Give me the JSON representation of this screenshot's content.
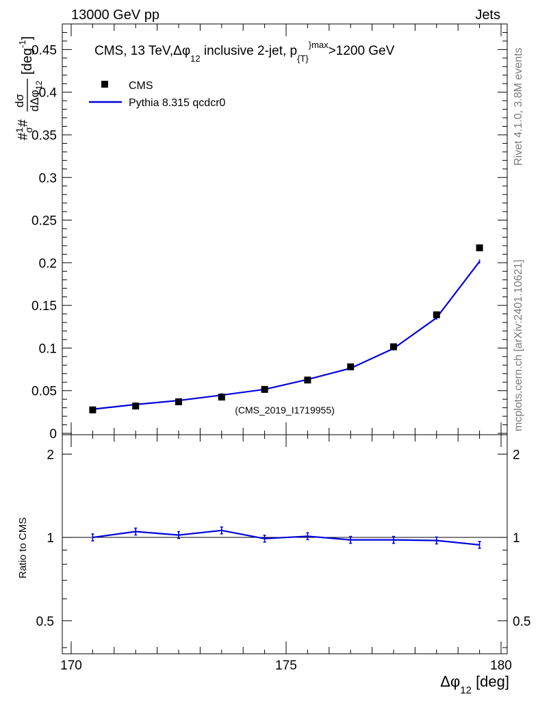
{
  "header": {
    "left": "13000 GeV pp",
    "right": "Jets"
  },
  "side_labels": {
    "rivet": "Rivet 4.1.0,  3.8M events",
    "mcplots": "mcplots.cern.ch [arXiv:2401.10621]"
  },
  "analysis_tag": "(CMS_2019_I1719955)",
  "colors": {
    "data": "#000000",
    "mc": "#0000dd",
    "side_text": "#7a7a7a"
  },
  "chart_data": [
    {
      "type": "scatter",
      "panel": "main",
      "title_parts": {
        "a": "CMS, 13 TeV,",
        "dphi": "Δφ",
        "sub12": "12",
        "b": " inclusive 2-jet,  p",
        "subT": "{T}",
        "supmax": "}max",
        "c": ">1200 GeV"
      },
      "ylabel_parts": {
        "hash1": "#",
        "one": "1",
        "sigma": "σ",
        "hash2": "#",
        "num": "dσ",
        "den": "dΔφ",
        "sub": "12",
        "unit": "[deg",
        "unit_sup": "-1",
        "unit_close": "]"
      },
      "xlim": [
        170,
        180
      ],
      "ylim": [
        0,
        0.48
      ],
      "yticks": [
        0,
        0.05,
        0.1,
        0.15,
        0.2,
        0.25,
        0.3,
        0.35,
        0.4,
        0.45
      ],
      "ytick_labels": [
        "0",
        "0.05",
        "0.1",
        "0.15",
        "0.2",
        "0.25",
        "0.3",
        "0.35",
        "0.4",
        "0.45"
      ],
      "legend": [
        {
          "label": "CMS",
          "kind": "marker"
        },
        {
          "label": "Pythia 8.315 qcdcr0",
          "kind": "line"
        }
      ],
      "series": [
        {
          "name": "CMS",
          "x": [
            170.5,
            171.5,
            172.5,
            173.5,
            174.5,
            175.5,
            176.5,
            177.5,
            178.5,
            179.5
          ],
          "values": [
            0.0275,
            0.032,
            0.037,
            0.0425,
            0.0515,
            0.0625,
            0.078,
            0.1015,
            0.139,
            0.2175
          ]
        },
        {
          "name": "Pythia 8.315 qcdcr0",
          "x": [
            170.5,
            171.5,
            172.5,
            173.5,
            174.5,
            175.5,
            176.5,
            177.5,
            178.5,
            179.5
          ],
          "values": [
            0.0283,
            0.0338,
            0.0385,
            0.0448,
            0.0515,
            0.0632,
            0.0763,
            0.0995,
            0.1355,
            0.2015
          ]
        }
      ]
    },
    {
      "type": "line",
      "panel": "ratio",
      "ylabel": "Ratio to CMS",
      "ylim": [
        0.38,
        2.35
      ],
      "yscale": "log",
      "yticks": [
        0.5,
        1,
        2
      ],
      "ytick_labels": [
        "0.5",
        "1",
        "2"
      ],
      "xticks": [
        170,
        175,
        180
      ],
      "xtick_labels": [
        "170",
        "175",
        "180"
      ],
      "xlabel_parts": {
        "dphi": "Δφ",
        "sub": "12",
        "unit": " [deg]"
      },
      "reference": 1.0,
      "series": [
        {
          "name": "Pythia 8.315 qcdcr0",
          "x": [
            170.5,
            171.5,
            172.5,
            173.5,
            174.5,
            175.5,
            176.5,
            177.5,
            178.5,
            179.5
          ],
          "values": [
            1.0,
            1.05,
            1.02,
            1.06,
            0.99,
            1.01,
            0.98,
            0.98,
            0.975,
            0.94
          ]
        }
      ]
    }
  ]
}
